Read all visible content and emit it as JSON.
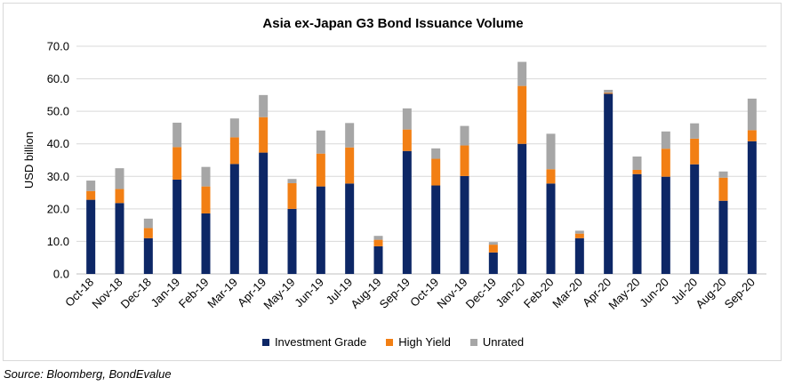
{
  "chart_data": {
    "type": "bar",
    "stacked": true,
    "title": "Asia ex-Japan G3 Bond Issuance Volume",
    "xlabel": "",
    "ylabel": "USD billion",
    "ylim": [
      0,
      70
    ],
    "yticks": [
      "0.0",
      "10.0",
      "20.0",
      "30.0",
      "40.0",
      "50.0",
      "60.0",
      "70.0"
    ],
    "grid": true,
    "legend_position": "bottom",
    "categories": [
      "Oct-18",
      "Nov-18",
      "Dec-18",
      "Jan-19",
      "Feb-19",
      "Mar-19",
      "Apr-19",
      "May-19",
      "Jun-19",
      "Jul-19",
      "Aug-19",
      "Sep-19",
      "Oct-19",
      "Nov-19",
      "Dec-19",
      "Jan-20",
      "Feb-20",
      "Mar-20",
      "Apr-20",
      "May-20",
      "Jun-20",
      "Jul-20",
      "Aug-20",
      "Sep-20"
    ],
    "series": [
      {
        "name": "Investment Grade",
        "color": "#0d2766",
        "values": [
          22.8,
          21.8,
          11.0,
          29.0,
          18.6,
          33.8,
          37.3,
          20.0,
          26.9,
          27.8,
          8.5,
          37.8,
          27.2,
          30.1,
          6.6,
          40.0,
          27.8,
          11.0,
          55.4,
          30.7,
          29.9,
          33.7,
          22.5,
          40.8
        ]
      },
      {
        "name": "High Yield",
        "color": "#f27f14",
        "values": [
          2.7,
          4.3,
          3.1,
          10.0,
          8.3,
          8.2,
          10.9,
          7.9,
          10.1,
          11.1,
          2.0,
          6.6,
          8.2,
          9.4,
          2.4,
          17.8,
          4.4,
          1.4,
          0.3,
          1.3,
          8.6,
          7.9,
          7.1,
          3.4
        ]
      },
      {
        "name": "Unrated",
        "color": "#a6a6a6",
        "values": [
          3.2,
          6.4,
          2.9,
          7.5,
          6.0,
          5.8,
          6.8,
          1.3,
          7.1,
          7.5,
          1.2,
          6.5,
          3.2,
          6.0,
          0.8,
          7.4,
          10.9,
          0.9,
          0.9,
          4.1,
          5.3,
          4.7,
          1.9,
          9.7
        ]
      }
    ]
  },
  "footer": {
    "source": "Source: Bloomberg, BondEvalue"
  }
}
